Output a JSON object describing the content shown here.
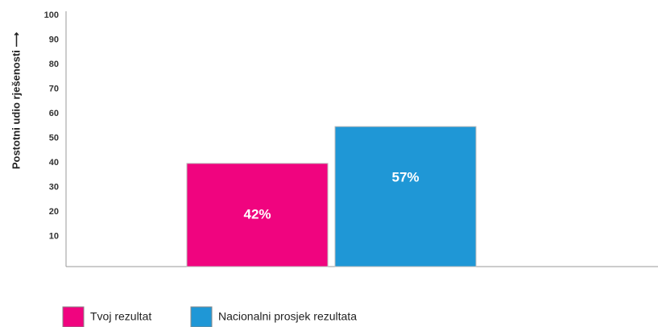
{
  "chart_data": {
    "type": "bar",
    "y_label": "Postotni udio rješenosti ⟶",
    "categories": [
      null
    ],
    "series": [
      {
        "name": "Tvoj rezultat",
        "color": "#f0047f",
        "values": [
          42
        ],
        "value_labels": [
          "42%"
        ]
      },
      {
        "name": "Nacionalni prosjek rezultata",
        "color": "#1f97d6",
        "values": [
          57
        ],
        "value_labels": [
          "57%"
        ]
      }
    ],
    "ylim": [
      0,
      100
    ],
    "yticks": [
      10,
      20,
      30,
      40,
      50,
      60,
      70,
      80,
      90,
      100
    ],
    "grid": false
  }
}
